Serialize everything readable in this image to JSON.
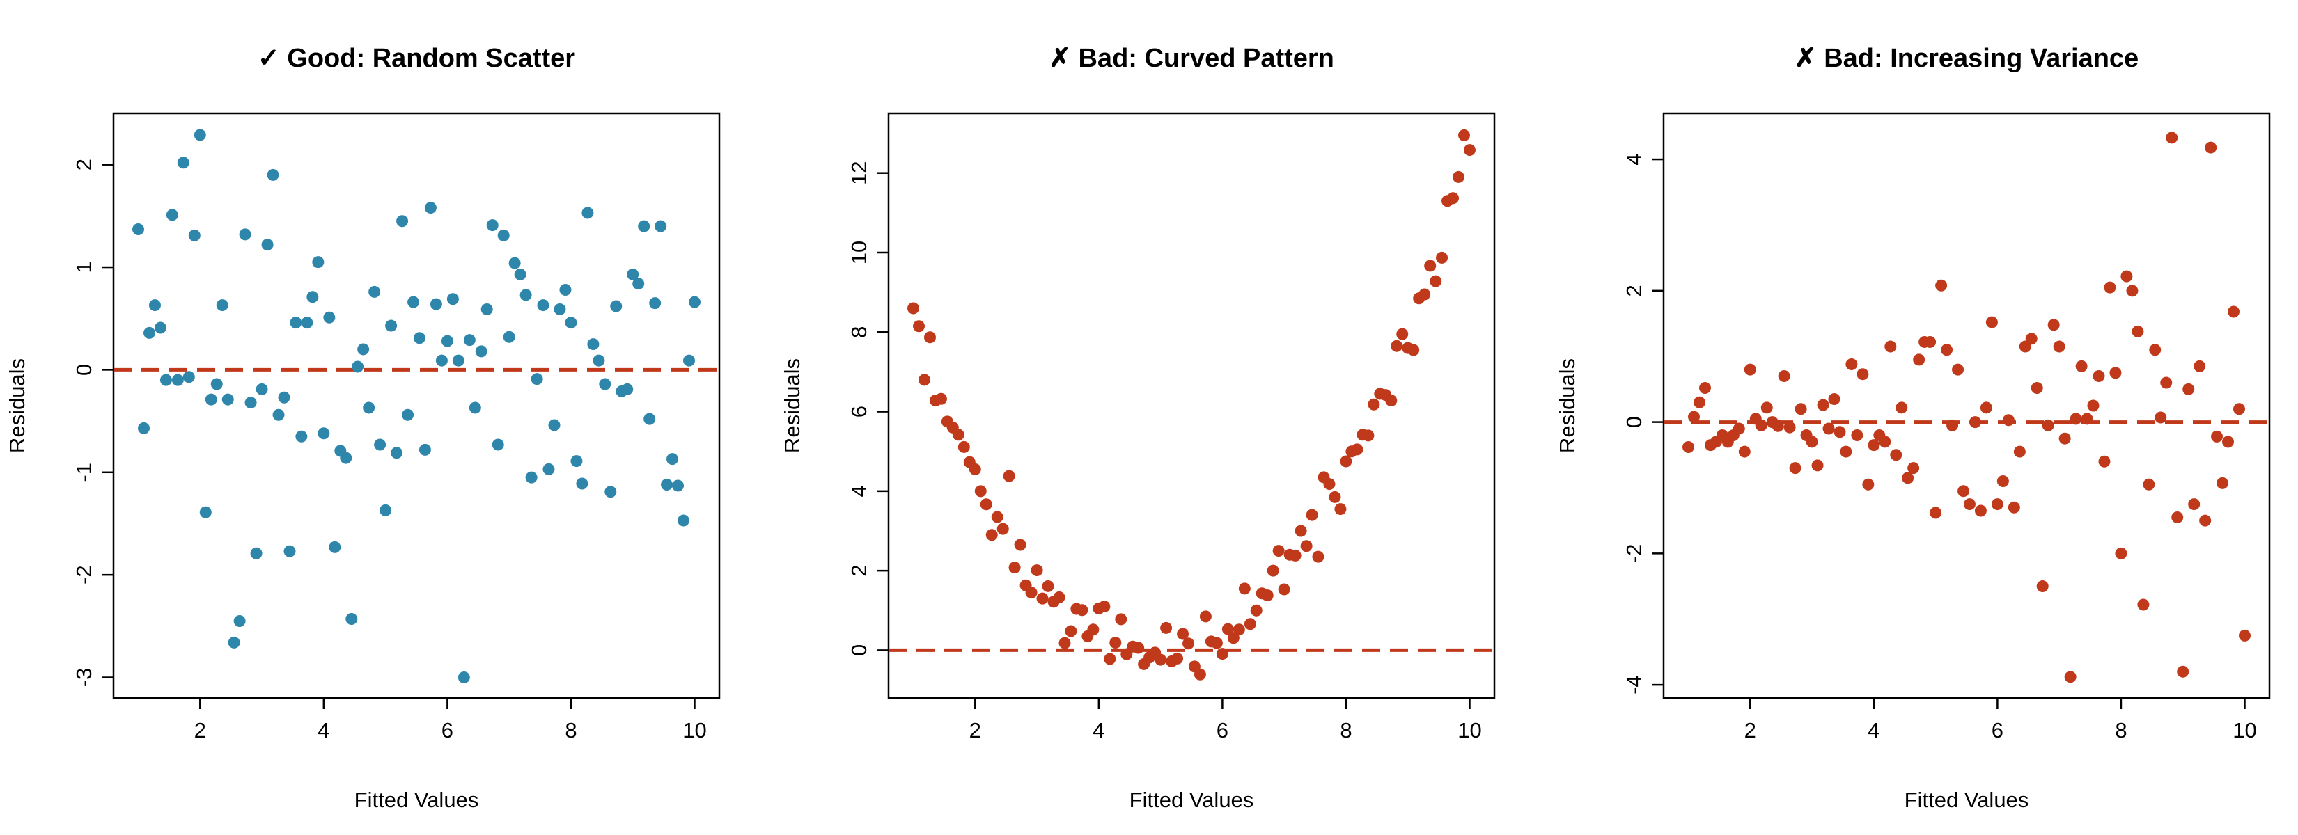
{
  "colors": {
    "good": "#2e86ab",
    "bad": "#c0391b",
    "reference": "#c0391b"
  },
  "chart_data": [
    {
      "type": "scatter",
      "title": "✓ Good: Random Scatter",
      "xlabel": "Fitted Values",
      "ylabel": "Residuals",
      "xlim": [
        0.6,
        10.4
      ],
      "ylim": [
        -3.2,
        2.5
      ],
      "xticks": [
        2,
        4,
        6,
        8,
        10
      ],
      "yticks": [
        -3,
        -2,
        -1,
        0,
        1,
        2
      ],
      "reference_line": 0,
      "point_color": "good",
      "points": [
        [
          1.0,
          1.37
        ],
        [
          1.09,
          -0.57
        ],
        [
          1.18,
          0.36
        ],
        [
          1.27,
          0.63
        ],
        [
          1.36,
          0.41
        ],
        [
          1.45,
          -0.1
        ],
        [
          1.55,
          1.51
        ],
        [
          1.64,
          -0.1
        ],
        [
          1.73,
          2.02
        ],
        [
          1.82,
          -0.07
        ],
        [
          1.91,
          1.31
        ],
        [
          2.0,
          2.29
        ],
        [
          2.09,
          -1.39
        ],
        [
          2.18,
          -0.29
        ],
        [
          2.27,
          -0.14
        ],
        [
          2.36,
          0.63
        ],
        [
          2.45,
          -0.29
        ],
        [
          2.55,
          -2.66
        ],
        [
          2.64,
          -2.45
        ],
        [
          2.73,
          1.32
        ],
        [
          2.82,
          -0.32
        ],
        [
          2.91,
          -1.79
        ],
        [
          3.0,
          -0.19
        ],
        [
          3.09,
          1.22
        ],
        [
          3.18,
          1.9
        ],
        [
          3.27,
          -0.44
        ],
        [
          3.36,
          -0.27
        ],
        [
          3.45,
          -1.77
        ],
        [
          3.55,
          0.46
        ],
        [
          3.64,
          -0.65
        ],
        [
          3.73,
          0.46
        ],
        [
          3.82,
          0.71
        ],
        [
          3.91,
          1.05
        ],
        [
          4.0,
          -0.62
        ],
        [
          4.09,
          0.51
        ],
        [
          4.18,
          -1.73
        ],
        [
          4.27,
          -0.79
        ],
        [
          4.36,
          -0.86
        ],
        [
          4.45,
          -2.43
        ],
        [
          4.55,
          0.03
        ],
        [
          4.64,
          0.2
        ],
        [
          4.73,
          -0.37
        ],
        [
          4.82,
          0.76
        ],
        [
          4.91,
          -0.73
        ],
        [
          5.0,
          -1.37
        ],
        [
          5.09,
          0.43
        ],
        [
          5.18,
          -0.81
        ],
        [
          5.27,
          1.45
        ],
        [
          5.36,
          -0.44
        ],
        [
          5.45,
          0.66
        ],
        [
          5.55,
          0.31
        ],
        [
          5.64,
          -0.78
        ],
        [
          5.73,
          1.58
        ],
        [
          5.82,
          0.64
        ],
        [
          5.91,
          0.09
        ],
        [
          6.0,
          0.28
        ],
        [
          6.09,
          0.69
        ],
        [
          6.18,
          0.09
        ],
        [
          6.27,
          -3.0
        ],
        [
          6.36,
          0.29
        ],
        [
          6.45,
          -0.37
        ],
        [
          6.55,
          0.18
        ],
        [
          6.64,
          0.59
        ],
        [
          6.73,
          1.41
        ],
        [
          6.82,
          -0.73
        ],
        [
          6.91,
          1.31
        ],
        [
          7.0,
          0.32
        ],
        [
          7.09,
          1.04
        ],
        [
          7.18,
          0.93
        ],
        [
          7.27,
          0.73
        ],
        [
          7.36,
          -1.05
        ],
        [
          7.45,
          -0.09
        ],
        [
          7.55,
          0.63
        ],
        [
          7.64,
          -0.97
        ],
        [
          7.73,
          -0.54
        ],
        [
          7.82,
          0.59
        ],
        [
          7.91,
          0.78
        ],
        [
          8.0,
          0.46
        ],
        [
          8.09,
          -0.89
        ],
        [
          8.18,
          -1.11
        ],
        [
          8.27,
          1.53
        ],
        [
          8.36,
          0.25
        ],
        [
          8.45,
          0.09
        ],
        [
          8.55,
          -0.14
        ],
        [
          8.64,
          -1.19
        ],
        [
          8.73,
          0.62
        ],
        [
          8.82,
          -0.21
        ],
        [
          8.91,
          -0.19
        ],
        [
          9.0,
          0.93
        ],
        [
          9.09,
          0.84
        ],
        [
          9.18,
          1.4
        ],
        [
          9.27,
          -0.48
        ],
        [
          9.36,
          0.65
        ],
        [
          9.45,
          1.4
        ],
        [
          9.55,
          -1.12
        ],
        [
          9.64,
          -0.87
        ],
        [
          9.73,
          -1.13
        ],
        [
          9.82,
          -1.47
        ],
        [
          9.91,
          0.09
        ],
        [
          10.0,
          0.66
        ]
      ]
    },
    {
      "type": "scatter",
      "title": "✗ Bad: Curved Pattern",
      "xlabel": "Fitted Values",
      "ylabel": "Residuals",
      "xlim": [
        0.6,
        10.4
      ],
      "ylim": [
        -1.2,
        13.5
      ],
      "xticks": [
        2,
        4,
        6,
        8,
        10
      ],
      "yticks": [
        0,
        2,
        4,
        6,
        8,
        10,
        12
      ],
      "reference_line": 0,
      "point_color": "bad",
      "points": [
        [
          1.0,
          8.6
        ],
        [
          1.09,
          8.15
        ],
        [
          1.18,
          6.8
        ],
        [
          1.27,
          7.87
        ],
        [
          1.36,
          6.28
        ],
        [
          1.45,
          6.32
        ],
        [
          1.55,
          5.75
        ],
        [
          1.64,
          5.6
        ],
        [
          1.73,
          5.42
        ],
        [
          1.82,
          5.11
        ],
        [
          1.91,
          4.73
        ],
        [
          2.0,
          4.55
        ],
        [
          2.09,
          4.0
        ],
        [
          2.18,
          3.67
        ],
        [
          2.27,
          2.9
        ],
        [
          2.36,
          3.35
        ],
        [
          2.45,
          3.05
        ],
        [
          2.55,
          4.38
        ],
        [
          2.64,
          2.08
        ],
        [
          2.73,
          2.65
        ],
        [
          2.82,
          1.63
        ],
        [
          2.91,
          1.45
        ],
        [
          3.0,
          2.01
        ],
        [
          3.09,
          1.3
        ],
        [
          3.18,
          1.61
        ],
        [
          3.27,
          1.22
        ],
        [
          3.36,
          1.33
        ],
        [
          3.45,
          0.18
        ],
        [
          3.55,
          0.48
        ],
        [
          3.64,
          1.04
        ],
        [
          3.73,
          1.01
        ],
        [
          3.82,
          0.35
        ],
        [
          3.91,
          0.52
        ],
        [
          4.0,
          1.05
        ],
        [
          4.09,
          1.1
        ],
        [
          4.18,
          -0.22
        ],
        [
          4.27,
          0.19
        ],
        [
          4.36,
          0.78
        ],
        [
          4.45,
          -0.1
        ],
        [
          4.55,
          0.09
        ],
        [
          4.64,
          0.06
        ],
        [
          4.73,
          -0.35
        ],
        [
          4.82,
          -0.18
        ],
        [
          4.91,
          -0.06
        ],
        [
          5.0,
          -0.24
        ],
        [
          5.09,
          0.56
        ],
        [
          5.18,
          -0.28
        ],
        [
          5.27,
          -0.21
        ],
        [
          5.36,
          0.41
        ],
        [
          5.45,
          0.17
        ],
        [
          5.55,
          -0.41
        ],
        [
          5.64,
          -0.61
        ],
        [
          5.73,
          0.85
        ],
        [
          5.82,
          0.22
        ],
        [
          5.91,
          0.18
        ],
        [
          6.0,
          -0.09
        ],
        [
          6.09,
          0.53
        ],
        [
          6.18,
          0.31
        ],
        [
          6.27,
          0.52
        ],
        [
          6.36,
          1.55
        ],
        [
          6.45,
          0.66
        ],
        [
          6.55,
          1.0
        ],
        [
          6.64,
          1.43
        ],
        [
          6.73,
          1.38
        ],
        [
          6.82,
          2.0
        ],
        [
          6.91,
          2.5
        ],
        [
          7.0,
          1.53
        ],
        [
          7.09,
          2.4
        ],
        [
          7.18,
          2.38
        ],
        [
          7.27,
          3.0
        ],
        [
          7.36,
          2.62
        ],
        [
          7.45,
          3.4
        ],
        [
          7.55,
          2.35
        ],
        [
          7.64,
          4.35
        ],
        [
          7.73,
          4.18
        ],
        [
          7.82,
          3.85
        ],
        [
          7.91,
          3.55
        ],
        [
          8.0,
          4.75
        ],
        [
          8.09,
          5.0
        ],
        [
          8.18,
          5.05
        ],
        [
          8.27,
          5.42
        ],
        [
          8.36,
          5.4
        ],
        [
          8.45,
          6.18
        ],
        [
          8.55,
          6.45
        ],
        [
          8.64,
          6.42
        ],
        [
          8.73,
          6.28
        ],
        [
          8.82,
          7.65
        ],
        [
          8.91,
          7.95
        ],
        [
          9.0,
          7.6
        ],
        [
          9.09,
          7.55
        ],
        [
          9.18,
          8.85
        ],
        [
          9.27,
          8.95
        ],
        [
          9.36,
          9.67
        ],
        [
          9.45,
          9.28
        ],
        [
          9.55,
          9.87
        ],
        [
          9.64,
          11.3
        ],
        [
          9.73,
          11.37
        ],
        [
          9.82,
          11.9
        ],
        [
          9.91,
          12.95
        ],
        [
          10.0,
          12.58
        ]
      ]
    },
    {
      "type": "scatter",
      "title": "✗ Bad: Increasing Variance",
      "xlabel": "Fitted Values",
      "ylabel": "Residuals",
      "xlim": [
        0.6,
        10.4
      ],
      "ylim": [
        -4.2,
        4.7
      ],
      "xticks": [
        2,
        4,
        6,
        8,
        10
      ],
      "yticks": [
        -4,
        -2,
        0,
        2,
        4
      ],
      "reference_line": 0,
      "point_color": "bad",
      "points": [
        [
          1.0,
          -0.38
        ],
        [
          1.09,
          0.08
        ],
        [
          1.18,
          0.3
        ],
        [
          1.27,
          0.52
        ],
        [
          1.36,
          -0.35
        ],
        [
          1.45,
          -0.3
        ],
        [
          1.55,
          -0.2
        ],
        [
          1.64,
          -0.3
        ],
        [
          1.73,
          -0.2
        ],
        [
          1.82,
          -0.1
        ],
        [
          1.91,
          -0.45
        ],
        [
          2.0,
          0.8
        ],
        [
          2.09,
          0.05
        ],
        [
          2.18,
          -0.05
        ],
        [
          2.27,
          0.22
        ],
        [
          2.36,
          0.0
        ],
        [
          2.45,
          -0.06
        ],
        [
          2.55,
          0.7
        ],
        [
          2.64,
          -0.08
        ],
        [
          2.73,
          -0.7
        ],
        [
          2.82,
          0.2
        ],
        [
          2.91,
          -0.2
        ],
        [
          3.0,
          -0.3
        ],
        [
          3.09,
          -0.66
        ],
        [
          3.18,
          0.26
        ],
        [
          3.27,
          -0.1
        ],
        [
          3.36,
          0.35
        ],
        [
          3.45,
          -0.15
        ],
        [
          3.55,
          -0.45
        ],
        [
          3.64,
          0.88
        ],
        [
          3.73,
          -0.2
        ],
        [
          3.82,
          0.73
        ],
        [
          3.91,
          -0.95
        ],
        [
          4.0,
          -0.35
        ],
        [
          4.09,
          -0.2
        ],
        [
          4.18,
          -0.3
        ],
        [
          4.27,
          1.15
        ],
        [
          4.36,
          -0.5
        ],
        [
          4.45,
          0.22
        ],
        [
          4.55,
          -0.85
        ],
        [
          4.64,
          -0.7
        ],
        [
          4.73,
          0.95
        ],
        [
          4.82,
          1.22
        ],
        [
          4.91,
          1.22
        ],
        [
          5.0,
          -1.38
        ],
        [
          5.09,
          2.08
        ],
        [
          5.18,
          1.1
        ],
        [
          5.27,
          -0.05
        ],
        [
          5.36,
          0.8
        ],
        [
          5.45,
          -1.05
        ],
        [
          5.55,
          -1.25
        ],
        [
          5.64,
          0.0
        ],
        [
          5.73,
          -1.35
        ],
        [
          5.82,
          0.22
        ],
        [
          5.91,
          1.52
        ],
        [
          6.0,
          -1.25
        ],
        [
          6.09,
          -0.9
        ],
        [
          6.18,
          0.03
        ],
        [
          6.27,
          -1.3
        ],
        [
          6.36,
          -0.45
        ],
        [
          6.45,
          1.15
        ],
        [
          6.55,
          1.27
        ],
        [
          6.64,
          0.52
        ],
        [
          6.73,
          -2.5
        ],
        [
          6.82,
          -0.05
        ],
        [
          6.91,
          1.48
        ],
        [
          7.0,
          1.15
        ],
        [
          7.09,
          -0.25
        ],
        [
          7.18,
          -3.88
        ],
        [
          7.27,
          0.05
        ],
        [
          7.36,
          0.85
        ],
        [
          7.45,
          0.05
        ],
        [
          7.55,
          0.25
        ],
        [
          7.64,
          0.7
        ],
        [
          7.73,
          -0.6
        ],
        [
          7.82,
          2.05
        ],
        [
          7.91,
          0.75
        ],
        [
          8.0,
          -2.0
        ],
        [
          8.09,
          2.22
        ],
        [
          8.18,
          2.0
        ],
        [
          8.27,
          1.38
        ],
        [
          8.36,
          -2.78
        ],
        [
          8.45,
          -0.95
        ],
        [
          8.55,
          1.1
        ],
        [
          8.64,
          0.07
        ],
        [
          8.73,
          0.6
        ],
        [
          8.82,
          4.33
        ],
        [
          8.91,
          -1.45
        ],
        [
          9.0,
          -3.8
        ],
        [
          9.09,
          0.5
        ],
        [
          9.18,
          -1.25
        ],
        [
          9.27,
          0.85
        ],
        [
          9.36,
          -1.5
        ],
        [
          9.45,
          4.18
        ],
        [
          9.55,
          -0.22
        ],
        [
          9.64,
          -0.93
        ],
        [
          9.73,
          -0.3
        ],
        [
          9.82,
          1.68
        ],
        [
          9.91,
          0.2
        ],
        [
          10.0,
          -3.25
        ]
      ]
    }
  ]
}
